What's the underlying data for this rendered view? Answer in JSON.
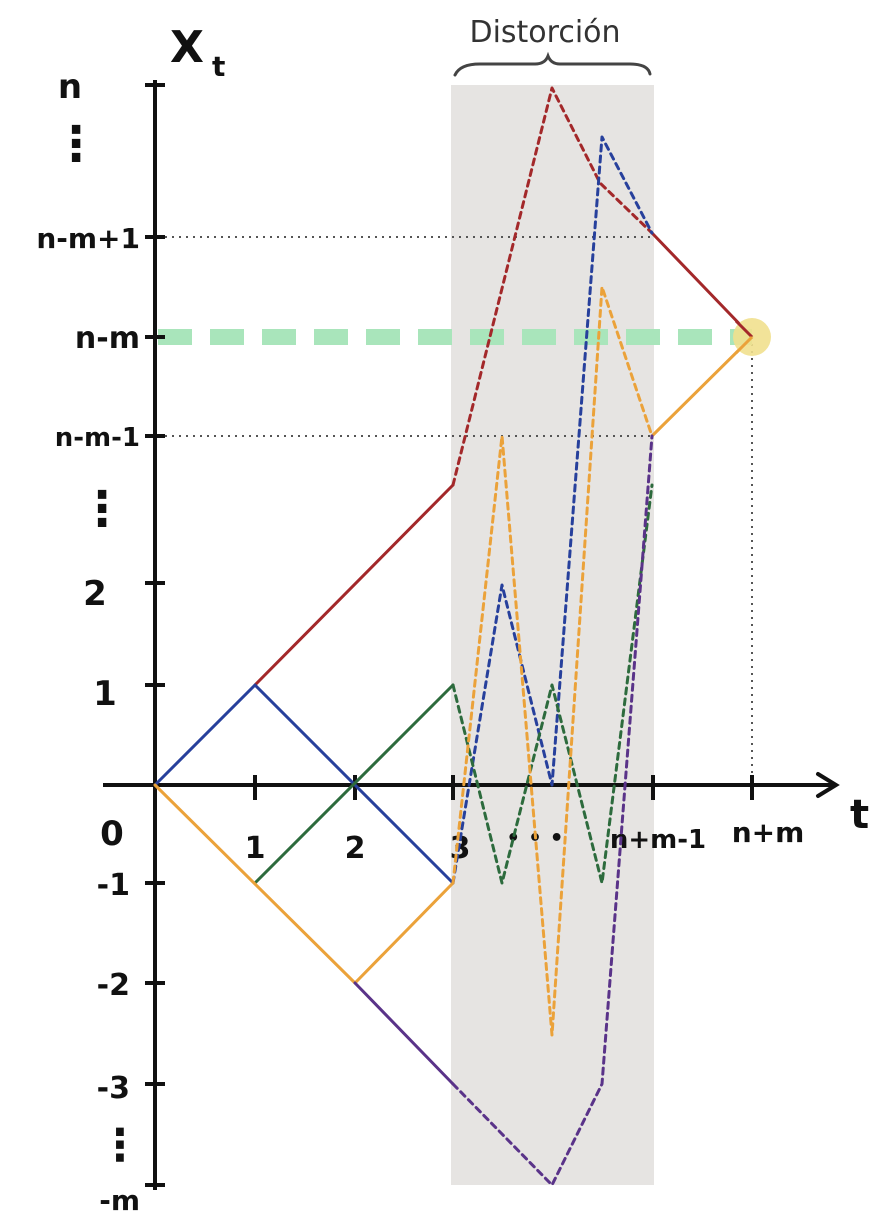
{
  "title_label": "Distorción",
  "y_axis": {
    "label_main": "X",
    "label_sub": "t"
  },
  "x_axis": {
    "label": "t"
  },
  "y_tick_labels": {
    "n": "n",
    "nm1": "n-m+1",
    "nm": "n-m",
    "nmm1": "n-m-1",
    "two": "2",
    "one": "1",
    "neg1": "-1",
    "neg2": "-2",
    "neg3": "-3",
    "negm": "-m"
  },
  "x_tick_labels": {
    "zero": "0",
    "one": "1",
    "two": "2",
    "three": "3",
    "dots": "• • •",
    "nmm1": "n+m-1",
    "nm": "n+m"
  },
  "ellipsis": "⋮",
  "colors": {
    "red": "#a3282a",
    "blue": "#27409c",
    "green": "#2d6b3d",
    "orange": "#eba23a",
    "purple": "#5a3389",
    "shade": "#e6e4e2",
    "dashed_green": "#a9e5bb",
    "point": "#f1e08e",
    "axis": "#111111"
  }
}
